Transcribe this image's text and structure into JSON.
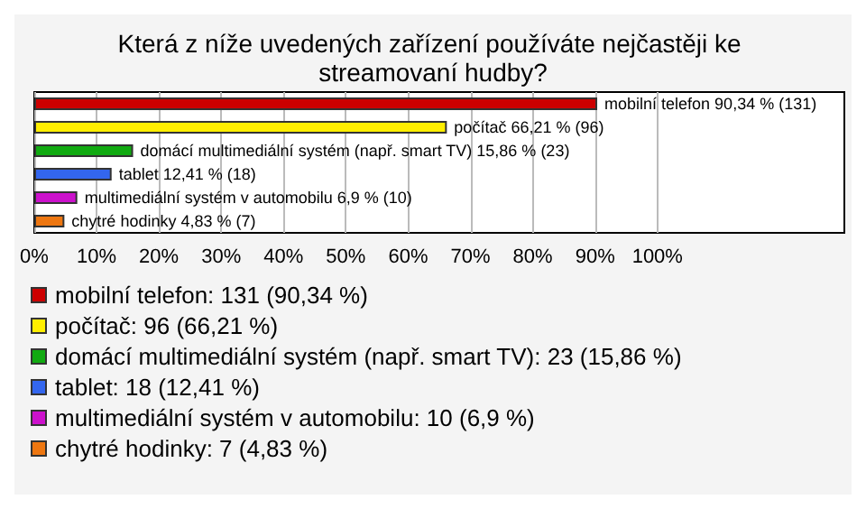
{
  "chart_data": {
    "type": "bar",
    "orientation": "horizontal",
    "stacked": true,
    "title": "Která z níže uvedených zařízení používáte nejčastěji ke streamovaní hudby?",
    "categories": [
      null,
      null,
      null,
      null,
      null,
      null
    ],
    "series": [
      {
        "name": "mobilní telefon: 131 (90,34 %)",
        "color": "#cc0000",
        "values": [
          90.34,
          null,
          null,
          null,
          null,
          null
        ],
        "value_labels": [
          "mobilní telefon 90,34 % (131)",
          null,
          null,
          null,
          null,
          null
        ]
      },
      {
        "name": "počítač: 96 (66,21 %)",
        "color": "#ffee00",
        "values": [
          null,
          66.21,
          null,
          null,
          null,
          null
        ],
        "value_labels": [
          null,
          "počítač 66,21 % (96)",
          null,
          null,
          null,
          null
        ]
      },
      {
        "name": "domácí multimediální systém (např. smart TV): 23 (15,86 %)",
        "color": "#11aa11",
        "values": [
          null,
          null,
          15.86,
          null,
          null,
          null
        ],
        "value_labels": [
          null,
          null,
          "domácí multimediální systém (např. smart TV) 15,86 % (23)",
          null,
          null,
          null
        ]
      },
      {
        "name": "tablet: 18 (12,41 %)",
        "color": "#3366ee",
        "values": [
          null,
          null,
          null,
          12.41,
          null,
          null
        ],
        "value_labels": [
          null,
          null,
          null,
          "tablet 12,41 % (18)",
          null,
          null
        ]
      },
      {
        "name": "multimediální systém v automobilu: 10 (6,9 %)",
        "color": "#cc11cc",
        "values": [
          null,
          null,
          null,
          null,
          6.9,
          null
        ],
        "value_labels": [
          null,
          null,
          null,
          null,
          "multimediální systém v automobilu 6,9 % (10)",
          null
        ]
      },
      {
        "name": "chytré hodinky: 7 (4,83 %)",
        "color": "#ee7711",
        "values": [
          null,
          null,
          null,
          null,
          null,
          4.83
        ],
        "value_labels": [
          null,
          null,
          null,
          null,
          null,
          "chytré hodinky 4,83 % (7)"
        ]
      }
    ],
    "xlim": [
      0,
      130
    ],
    "xticks": [
      {
        "value": 0,
        "label": "0%"
      },
      {
        "value": 10,
        "label": "10%"
      },
      {
        "value": 20,
        "label": "20%"
      },
      {
        "value": 30,
        "label": "30%"
      },
      {
        "value": 40,
        "label": "40%"
      },
      {
        "value": 50,
        "label": "50%"
      },
      {
        "value": 60,
        "label": "60%"
      },
      {
        "value": 70,
        "label": "70%"
      },
      {
        "value": 80,
        "label": "80%"
      },
      {
        "value": 90,
        "label": "90%"
      },
      {
        "value": 100,
        "label": "100%"
      }
    ],
    "grid": "x",
    "legend": "bottom"
  }
}
